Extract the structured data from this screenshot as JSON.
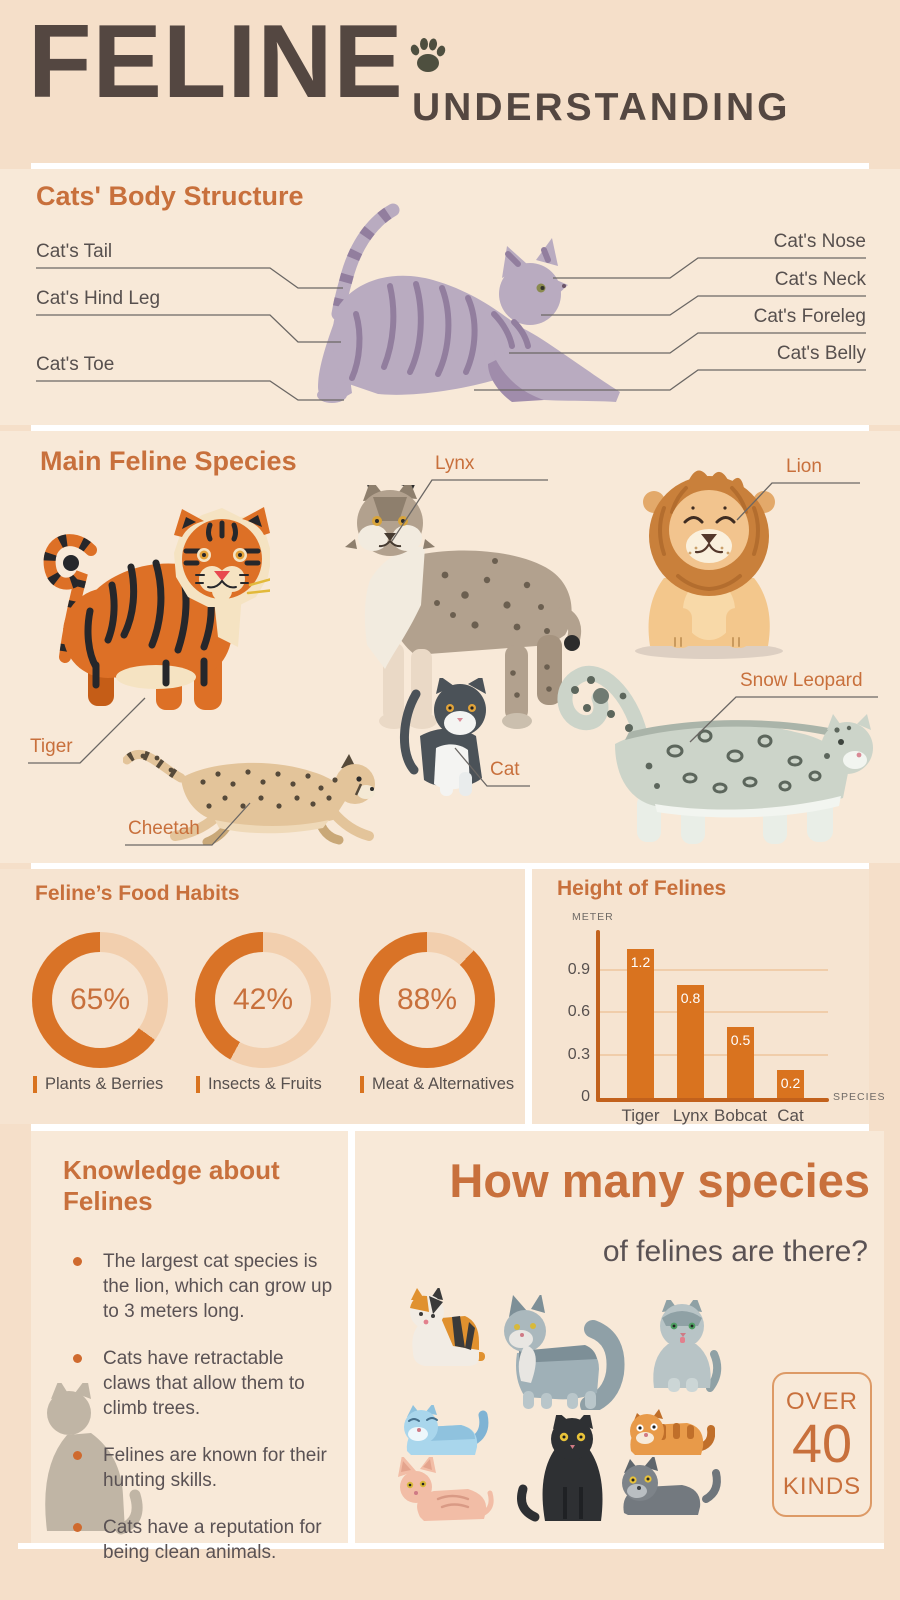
{
  "header": {
    "title": "FELINE",
    "subtitle": "UNDERSTANDING"
  },
  "body_structure": {
    "heading": "Cats' Body Structure",
    "labels_left": [
      "Cat's Tail",
      "Cat's Hind Leg",
      "Cat's Toe"
    ],
    "labels_right": [
      "Cat's Nose",
      "Cat's Neck",
      "Cat's Foreleg",
      "Cat's Belly"
    ]
  },
  "species": {
    "heading": "Main Feline Species",
    "labels": [
      "Tiger",
      "Lynx",
      "Lion",
      "Cheetah",
      "Cat",
      "Snow Leopard"
    ]
  },
  "food_habits": {
    "heading": "Feline’s Food Habits",
    "charts": [
      {
        "pct": 65,
        "display": "65%",
        "label": "Plants & Berries"
      },
      {
        "pct": 42,
        "display": "42%",
        "label": "Insects & Fruits"
      },
      {
        "pct": 88,
        "display": "88%",
        "label": "Meat & Alternatives"
      }
    ]
  },
  "chart_data": [
    {
      "type": "pie",
      "subtype": "donut-set",
      "title": "Feline’s Food Habits",
      "series": [
        {
          "name": "Plants & Berries",
          "value": 65
        },
        {
          "name": "Insects & Fruits",
          "value": 42
        },
        {
          "name": "Meat & Alternatives",
          "value": 88
        }
      ]
    },
    {
      "type": "bar",
      "title": "Height of Felines",
      "categories": [
        "Tiger",
        "Lynx",
        "Bobcat",
        "Cat"
      ],
      "values": [
        1.2,
        0.8,
        0.5,
        0.2
      ],
      "ylabel": "METER",
      "xlabel": "SPECIES",
      "yticks": [
        0,
        0.3,
        0.6,
        0.9
      ],
      "ylim": [
        0,
        1.2
      ],
      "grid": true
    }
  ],
  "knowledge": {
    "heading": "Knowledge about Felines",
    "bullets": [
      "The largest cat species is the lion, which can grow up to 3 meters long.",
      "Cats have retractable claws that allow them to climb trees.",
      "Felines are known for their hunting skills.",
      "Cats have a reputation for being clean animals."
    ]
  },
  "how_many": {
    "heading": "How many species",
    "subheading": "of felines are there?",
    "badge": {
      "line1": "OVER",
      "number": "40",
      "line3": "KINDS"
    }
  },
  "colors": {
    "page_bg": "#f5dfc9",
    "panel_light": "#f8e9d8",
    "panel_mid": "#f6e4d1",
    "header_text": "#544741",
    "accent": "#c8703c",
    "text_dark": "#57504e",
    "donut_fill": "#d97327",
    "donut_track": "#f2cfae",
    "bar_color": "#d9731f",
    "axis_color": "#c2611c",
    "grid_color": "#f0cdaa"
  }
}
